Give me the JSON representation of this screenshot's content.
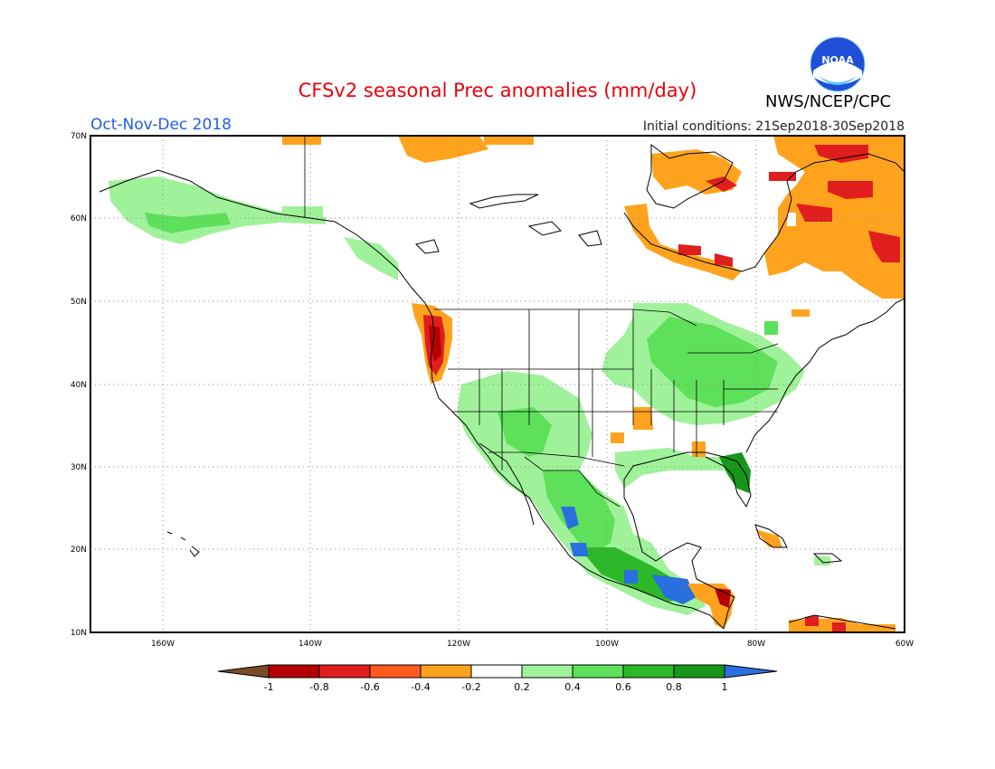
{
  "title": "CFSv2 seasonal Prec anomalies (mm/day)",
  "period": "Oct-Nov-Dec 2018",
  "initial_conditions": "Initial conditions: 21Sep2018-30Sep2018",
  "agency": "NWS/NCEP/CPC",
  "logo_text": "NOAA",
  "map": {
    "lon_range": [
      -172,
      -60
    ],
    "lat_range": [
      10,
      70
    ],
    "lat_ticks": [
      "10N",
      "20N",
      "30N",
      "40N",
      "50N",
      "60N",
      "70N"
    ],
    "lon_ticks": [
      "160W",
      "140W",
      "120W",
      "100W",
      "80W",
      "60W"
    ],
    "grid": true
  },
  "colorbar": {
    "labels": [
      "-1",
      "-0.8",
      "-0.6",
      "-0.4",
      "-0.2",
      "0.2",
      "0.4",
      "0.6",
      "0.8",
      "1"
    ],
    "colors": [
      "#7a4a2a",
      "#b40000",
      "#e01e1e",
      "#ff5a1e",
      "#ffa31e",
      "#ffffff",
      "#9ff29a",
      "#5ee05a",
      "#2db82a",
      "#16961a",
      "#2a6fe0"
    ]
  },
  "anomaly_patches": [
    {
      "region": "Alaska",
      "category": "0.2",
      "color": "#9ff29a"
    },
    {
      "region": "Pacific Northwest coast",
      "category": "-0.8",
      "color": "#b40000"
    },
    {
      "region": "Southwest US and Mexico",
      "category": "0.4",
      "color": "#5ee05a"
    },
    {
      "region": "Southern Mexico and Central America",
      "category": "1",
      "color": "#2a6fe0"
    },
    {
      "region": "Ohio Valley and Northeast US",
      "category": "0.4",
      "color": "#5ee05a"
    },
    {
      "region": "Florida",
      "category": "0.8",
      "color": "#16961a"
    },
    {
      "region": "Hudson Bay and Labrador",
      "category": "-0.4",
      "color": "#ffa31e"
    },
    {
      "region": "Labrador Sea",
      "category": "-0.6",
      "color": "#ff5a1e"
    },
    {
      "region": "Southern Plains",
      "category": "-0.4",
      "color": "#ffa31e"
    }
  ]
}
